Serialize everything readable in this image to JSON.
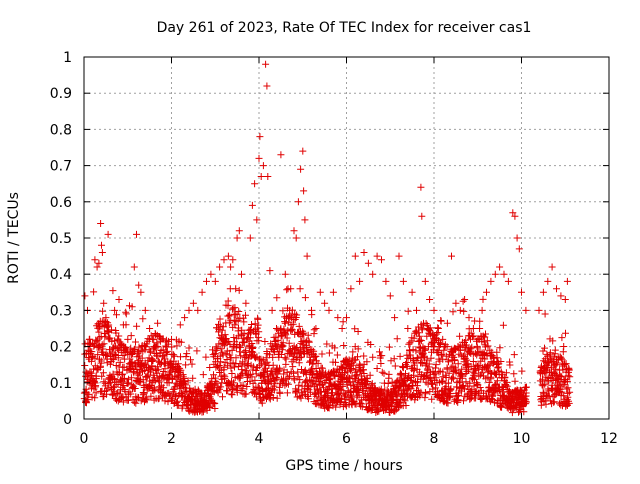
{
  "chart_data": {
    "type": "scatter",
    "title": "Day 261 of 2023, Rate Of TEC Index for receiver cas1",
    "xlabel": "GPS time / hours",
    "ylabel": "ROTI / TECUs",
    "xlim": [
      0,
      12
    ],
    "ylim": [
      0,
      1
    ],
    "xticks": [
      0,
      2,
      4,
      6,
      8,
      10,
      12
    ],
    "xtick_labels": [
      "0",
      "2",
      "4",
      "6",
      "8",
      "10",
      "12"
    ],
    "yticks": [
      0,
      0.1,
      0.2,
      0.3,
      0.4,
      0.5,
      0.6,
      0.7,
      0.8,
      0.9,
      1
    ],
    "ytick_labels": [
      "0",
      "0.1",
      "0.2",
      "0.3",
      "0.4",
      "0.5",
      "0.6",
      "0.7",
      "0.8",
      "0.9",
      "1"
    ],
    "grid": true,
    "marker": "+",
    "colors": {
      "points": "#e00000",
      "grid": "#a0a0a0",
      "axis": "#000000"
    },
    "series": [
      {
        "name": "ROTI",
        "points": [
          [
            0.02,
            0.34
          ],
          [
            0.08,
            0.3
          ],
          [
            0.12,
            0.22
          ],
          [
            0.18,
            0.12
          ],
          [
            0.25,
            0.44
          ],
          [
            0.3,
            0.42
          ],
          [
            0.34,
            0.43
          ],
          [
            0.38,
            0.54
          ],
          [
            0.4,
            0.48
          ],
          [
            0.42,
            0.46
          ],
          [
            0.45,
            0.32
          ],
          [
            0.5,
            0.28
          ],
          [
            0.55,
            0.51
          ],
          [
            0.6,
            0.18
          ],
          [
            0.7,
            0.3
          ],
          [
            0.8,
            0.33
          ],
          [
            0.9,
            0.26
          ],
          [
            1.0,
            0.22
          ],
          [
            1.1,
            0.31
          ],
          [
            1.15,
            0.42
          ],
          [
            1.2,
            0.51
          ],
          [
            1.25,
            0.37
          ],
          [
            1.3,
            0.35
          ],
          [
            1.4,
            0.3
          ],
          [
            1.5,
            0.25
          ],
          [
            1.6,
            0.2
          ],
          [
            1.7,
            0.16
          ],
          [
            1.8,
            0.12
          ],
          [
            1.9,
            0.1
          ],
          [
            2.0,
            0.22
          ],
          [
            2.1,
            0.15
          ],
          [
            2.2,
            0.26
          ],
          [
            2.3,
            0.28
          ],
          [
            2.4,
            0.3
          ],
          [
            2.5,
            0.32
          ],
          [
            2.6,
            0.3
          ],
          [
            2.7,
            0.35
          ],
          [
            2.8,
            0.38
          ],
          [
            2.9,
            0.4
          ],
          [
            3.0,
            0.38
          ],
          [
            3.1,
            0.42
          ],
          [
            3.2,
            0.44
          ],
          [
            3.3,
            0.45
          ],
          [
            3.35,
            0.42
          ],
          [
            3.4,
            0.44
          ],
          [
            3.5,
            0.5
          ],
          [
            3.55,
            0.52
          ],
          [
            3.6,
            0.4
          ],
          [
            3.7,
            0.32
          ],
          [
            3.8,
            0.5
          ],
          [
            3.85,
            0.59
          ],
          [
            3.9,
            0.65
          ],
          [
            3.95,
            0.55
          ],
          [
            4.0,
            0.72
          ],
          [
            4.02,
            0.78
          ],
          [
            4.05,
            0.67
          ],
          [
            4.1,
            0.7
          ],
          [
            4.15,
            0.98
          ],
          [
            4.18,
            0.92
          ],
          [
            4.2,
            0.67
          ],
          [
            4.25,
            0.41
          ],
          [
            4.3,
            0.3
          ],
          [
            4.4,
            0.25
          ],
          [
            4.5,
            0.73
          ],
          [
            4.6,
            0.4
          ],
          [
            4.7,
            0.3
          ],
          [
            4.8,
            0.52
          ],
          [
            4.85,
            0.5
          ],
          [
            4.9,
            0.6
          ],
          [
            4.95,
            0.69
          ],
          [
            5.0,
            0.74
          ],
          [
            5.02,
            0.63
          ],
          [
            5.05,
            0.55
          ],
          [
            5.1,
            0.45
          ],
          [
            5.2,
            0.3
          ],
          [
            5.3,
            0.25
          ],
          [
            5.4,
            0.35
          ],
          [
            5.5,
            0.32
          ],
          [
            5.6,
            0.3
          ],
          [
            5.7,
            0.35
          ],
          [
            5.8,
            0.28
          ],
          [
            5.9,
            0.25
          ],
          [
            6.0,
            0.28
          ],
          [
            6.1,
            0.36
          ],
          [
            6.2,
            0.45
          ],
          [
            6.3,
            0.38
          ],
          [
            6.4,
            0.46
          ],
          [
            6.5,
            0.43
          ],
          [
            6.6,
            0.4
          ],
          [
            6.7,
            0.45
          ],
          [
            6.8,
            0.44
          ],
          [
            6.9,
            0.38
          ],
          [
            7.0,
            0.34
          ],
          [
            7.1,
            0.28
          ],
          [
            7.2,
            0.45
          ],
          [
            7.3,
            0.38
          ],
          [
            7.4,
            0.25
          ],
          [
            7.5,
            0.35
          ],
          [
            7.6,
            0.3
          ],
          [
            7.7,
            0.64
          ],
          [
            7.72,
            0.56
          ],
          [
            7.8,
            0.38
          ],
          [
            7.9,
            0.33
          ],
          [
            8.0,
            0.3
          ],
          [
            8.1,
            0.25
          ],
          [
            8.2,
            0.22
          ],
          [
            8.3,
            0.2
          ],
          [
            8.4,
            0.45
          ],
          [
            8.5,
            0.32
          ],
          [
            8.6,
            0.3
          ],
          [
            8.7,
            0.33
          ],
          [
            8.8,
            0.28
          ],
          [
            8.9,
            0.25
          ],
          [
            9.0,
            0.22
          ],
          [
            9.1,
            0.3
          ],
          [
            9.2,
            0.35
          ],
          [
            9.3,
            0.38
          ],
          [
            9.4,
            0.4
          ],
          [
            9.5,
            0.42
          ],
          [
            9.6,
            0.4
          ],
          [
            9.7,
            0.38
          ],
          [
            9.8,
            0.57
          ],
          [
            9.85,
            0.56
          ],
          [
            9.9,
            0.5
          ],
          [
            9.95,
            0.47
          ],
          [
            10.0,
            0.35
          ],
          [
            10.1,
            0.3
          ],
          [
            10.4,
            0.3
          ],
          [
            10.5,
            0.35
          ],
          [
            10.6,
            0.38
          ],
          [
            10.7,
            0.42
          ],
          [
            10.8,
            0.36
          ],
          [
            10.9,
            0.34
          ],
          [
            11.0,
            0.33
          ],
          [
            11.05,
            0.38
          ]
        ],
        "note": "Dense cluster of additional points between roughly 0.02 and 0.35 TECUs across 0–10.1 h and 10.4–11.1 h"
      }
    ]
  }
}
